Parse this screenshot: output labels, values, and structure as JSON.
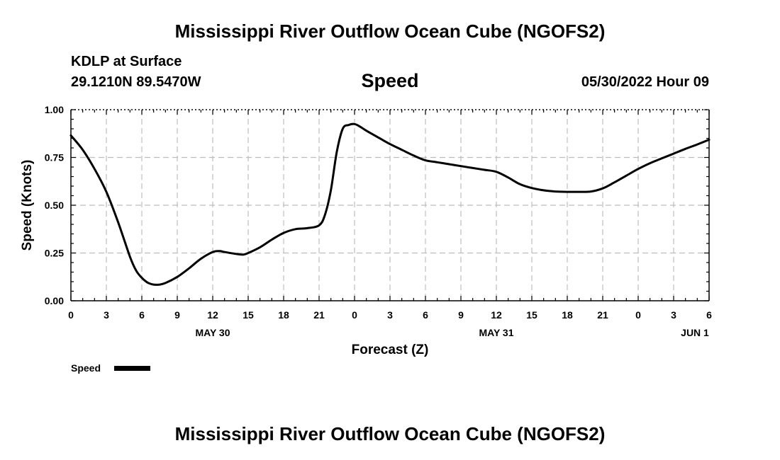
{
  "title": "Mississippi River Outflow Ocean Cube (NGOFS2)",
  "station": "KDLP at Surface",
  "coordinates": "29.1210N  89.5470W",
  "plot_title": "Speed",
  "datetime": "05/30/2022 Hour 09",
  "footer_title": "Mississippi River Outflow Ocean Cube (NGOFS2)",
  "chart_data": {
    "type": "line",
    "title": "Speed",
    "xlabel": "Forecast (Z)",
    "ylabel": "Speed (Knots)",
    "xlim_hours": [
      0,
      54
    ],
    "ylim": [
      0,
      1
    ],
    "grid": true,
    "x_tick_hours": [
      0,
      3,
      6,
      9,
      12,
      15,
      18,
      21,
      24,
      27,
      30,
      33,
      36,
      39,
      42,
      45,
      48,
      51,
      54
    ],
    "x_tick_labels": [
      "0",
      "3",
      "6",
      "9",
      "12",
      "15",
      "18",
      "21",
      "0",
      "3",
      "6",
      "9",
      "12",
      "15",
      "18",
      "21",
      "0",
      "3",
      "6"
    ],
    "date_labels": [
      {
        "hour": 12,
        "label": "MAY 30"
      },
      {
        "hour": 36,
        "label": "MAY 31"
      },
      {
        "hour": 52.8,
        "label": "JUN 1"
      }
    ],
    "y_ticks": [
      0,
      0.25,
      0.5,
      0.75,
      1.0
    ],
    "y_tick_labels": [
      "0.00",
      "0.25",
      "0.50",
      "0.75",
      "1.00"
    ],
    "legend": {
      "label": "Speed",
      "position": "bottom-left"
    },
    "series": [
      {
        "name": "Speed",
        "color": "#000000",
        "x_hours": [
          0,
          1,
          2,
          3,
          4,
          5,
          5.5,
          6,
          6.5,
          7,
          7.5,
          8,
          9,
          10,
          11,
          12,
          12.6,
          13,
          14,
          14.6,
          15,
          16,
          17,
          18,
          19,
          20,
          21,
          21.5,
          22,
          22.5,
          23,
          23.5,
          24,
          24.5,
          25,
          26,
          27,
          28,
          29,
          30,
          31,
          32,
          33,
          34,
          35,
          36,
          37,
          38,
          39,
          40,
          41,
          42,
          43,
          44,
          45,
          46,
          47,
          48,
          49,
          50,
          51,
          52,
          53,
          54
        ],
        "values": [
          0.865,
          0.79,
          0.69,
          0.57,
          0.41,
          0.23,
          0.16,
          0.12,
          0.095,
          0.085,
          0.085,
          0.093,
          0.125,
          0.17,
          0.22,
          0.255,
          0.26,
          0.255,
          0.245,
          0.242,
          0.25,
          0.28,
          0.32,
          0.355,
          0.375,
          0.38,
          0.395,
          0.45,
          0.58,
          0.78,
          0.9,
          0.92,
          0.925,
          0.91,
          0.89,
          0.855,
          0.82,
          0.79,
          0.76,
          0.735,
          0.725,
          0.715,
          0.705,
          0.695,
          0.685,
          0.675,
          0.645,
          0.61,
          0.59,
          0.578,
          0.572,
          0.57,
          0.57,
          0.572,
          0.588,
          0.62,
          0.655,
          0.69,
          0.72,
          0.745,
          0.77,
          0.795,
          0.818,
          0.843
        ]
      }
    ]
  }
}
